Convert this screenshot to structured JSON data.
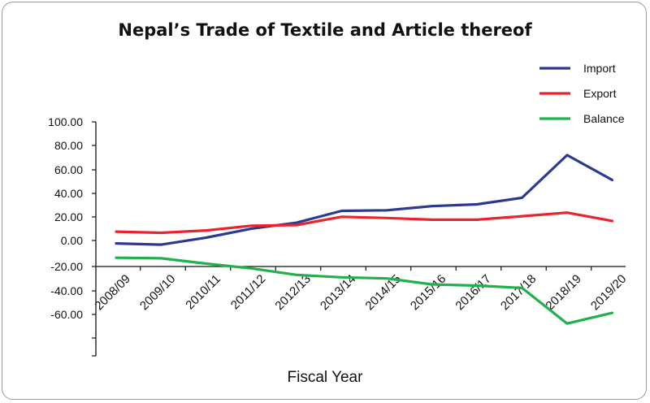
{
  "chart_data": {
    "type": "line",
    "title": "Nepal’s Trade of Textile and Article thereof",
    "xlabel": "Fiscal Year",
    "ylabel": "",
    "ylim": [
      -100,
      100
    ],
    "yticks": [
      "100.00",
      "80.00",
      "60.00",
      "40.00",
      "20.00",
      "0.00",
      "-20.00",
      "-40.00",
      "-60.00"
    ],
    "legend_position": "top-right",
    "categories": [
      "2008/09",
      "2009/10",
      "2010/11",
      "2011/12",
      "2012/13",
      "2013/14",
      "2014/15",
      "2015/16",
      "2016/17",
      "2017/18",
      "2018/19",
      "2019/20"
    ],
    "series": [
      {
        "name": "Import",
        "color": "#2b3990",
        "values": [
          -2.5,
          -3.5,
          2.5,
          10,
          15,
          25,
          25.5,
          29,
          30.5,
          36,
          72,
          51
        ]
      },
      {
        "name": "Export",
        "color": "#e8252b",
        "values": [
          7.5,
          6.5,
          8.5,
          12.5,
          13,
          20,
          19,
          17.5,
          17.5,
          20.5,
          23.5,
          16.5
        ]
      },
      {
        "name": "Balance",
        "color": "#1fb14b",
        "values": [
          -14.5,
          -15,
          -19.5,
          -23.5,
          -29,
          -31,
          -32,
          -37,
          -38,
          -40,
          -70,
          -61
        ]
      }
    ]
  }
}
